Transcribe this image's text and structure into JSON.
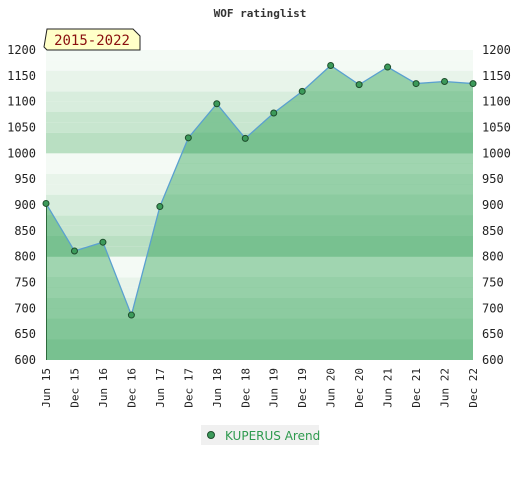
{
  "chart_data": {
    "type": "line",
    "title": "WOF ratinglist",
    "period_label": "2015-2022",
    "ylim": [
      600,
      1200
    ],
    "y_ticks": [
      600,
      650,
      700,
      750,
      800,
      850,
      900,
      950,
      1000,
      1050,
      1100,
      1150,
      1200
    ],
    "x_labels": [
      "Jun 15",
      "Dec 15",
      "Jun 16",
      "Dec 16",
      "Jun 17",
      "Dec 17",
      "Jun 18",
      "Dec 18",
      "Jun 19",
      "Dec 19",
      "Jun 20",
      "Dec 20",
      "Jun 21",
      "Dec 21",
      "Jun 22",
      "Dec 22"
    ],
    "series": [
      {
        "name": "KUPERUS Arend",
        "values": [
          903,
          811,
          828,
          687,
          897,
          1030,
          1096,
          1029,
          1078,
          1120,
          1170,
          1133,
          1167,
          1135,
          1139,
          1135
        ]
      }
    ],
    "grid": true,
    "legend_position": "bottom"
  },
  "colors": {
    "line": "#5aa0d0",
    "fill": "#7dc493",
    "marker_fill": "#3c9a5a",
    "marker_stroke": "#1d4d2c",
    "legend_text": "#2e9a4e",
    "range_box_fill": "#ffffc8"
  }
}
